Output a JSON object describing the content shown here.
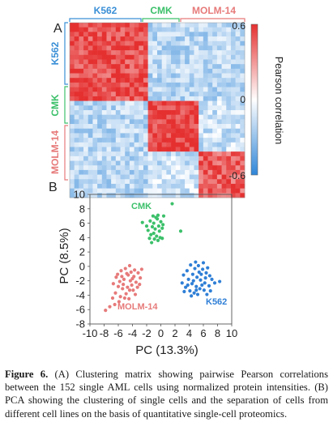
{
  "panel_a": {
    "label": "A",
    "top_groups": [
      "K562",
      "CMK",
      "MOLM-14"
    ],
    "left_groups": [
      "K562",
      "CMK",
      "MOLM-14"
    ],
    "colorbar_ticks": [
      "0.6",
      "0",
      "-0.6"
    ],
    "colorbar_label": "Pearson correlation",
    "colors": {
      "K562": "#3a8fd6",
      "CMK": "#3cc06a",
      "MOLM-14": "#e77a7a",
      "positive": "#e53030",
      "negative": "#2f86d8"
    }
  },
  "panel_b": {
    "label": "B",
    "xlabel": "PC (13.3%)",
    "ylabel": "PC (8.5%)",
    "xticks": [
      -10,
      -8,
      -6,
      -4,
      -2,
      0,
      2,
      4,
      6,
      8,
      10
    ],
    "yticks": [
      10,
      8,
      6,
      4,
      2,
      0,
      -2,
      -4,
      -6,
      -8
    ],
    "cluster_labels": [
      "CMK",
      "MOLM-14",
      "K562"
    ]
  },
  "chart_data": [
    {
      "type": "heatmap",
      "title": "",
      "rows": [
        "K562",
        "CMK",
        "MOLM-14"
      ],
      "columns": [
        "K562",
        "CMK",
        "MOLM-14"
      ],
      "values": [
        [
          0.5,
          -0.2,
          -0.2
        ],
        [
          -0.2,
          0.55,
          -0.15
        ],
        [
          -0.2,
          -0.15,
          0.45
        ]
      ],
      "zlim": [
        -0.6,
        0.6
      ],
      "zlabel": "Pearson correlation"
    },
    {
      "type": "scatter",
      "xlabel": "PC (13.3%)",
      "ylabel": "PC (8.5%)",
      "xlim": [
        -10,
        10
      ],
      "ylim": [
        -8,
        10
      ],
      "series": [
        {
          "name": "CMK",
          "color": "#3cc06a",
          "points": [
            [
              -1.5,
              6.3
            ],
            [
              -1.0,
              6.0
            ],
            [
              -0.5,
              6.6
            ],
            [
              0.0,
              6.2
            ],
            [
              -2.6,
              6.1
            ],
            [
              -1.2,
              5.5
            ],
            [
              -0.8,
              5.2
            ],
            [
              -0.3,
              5.6
            ],
            [
              0.3,
              5.8
            ],
            [
              -1.8,
              5.0
            ],
            [
              -1.0,
              4.6
            ],
            [
              -0.6,
              4.2
            ],
            [
              -0.2,
              4.9
            ],
            [
              0.2,
              5.3
            ],
            [
              -1.4,
              4.4
            ],
            [
              -0.9,
              3.8
            ],
            [
              -0.4,
              3.6
            ],
            [
              -1.6,
              3.9
            ],
            [
              -0.1,
              4.0
            ],
            [
              -1.1,
              7.0
            ],
            [
              -0.4,
              7.1
            ],
            [
              0.4,
              7.0
            ],
            [
              -2.0,
              5.6
            ],
            [
              0.2,
              3.9
            ],
            [
              1.6,
              8.7
            ],
            [
              2.8,
              4.9
            ],
            [
              -0.7,
              6.8
            ],
            [
              -1.3,
              3.3
            ]
          ]
        },
        {
          "name": "MOLM-14",
          "color": "#e77a7a",
          "points": [
            [
              -6.3,
              -1.5
            ],
            [
              -5.8,
              -2.1
            ],
            [
              -5.2,
              -1.8
            ],
            [
              -4.6,
              -1.2
            ],
            [
              -4.2,
              -0.8
            ],
            [
              -3.7,
              -0.5
            ],
            [
              -3.2,
              -0.9
            ],
            [
              -2.9,
              -1.6
            ],
            [
              -3.5,
              -2.2
            ],
            [
              -4.1,
              -2.6
            ],
            [
              -4.7,
              -2.9
            ],
            [
              -5.4,
              -3.1
            ],
            [
              -6.0,
              -2.8
            ],
            [
              -6.7,
              -2.4
            ],
            [
              -5.6,
              -0.6
            ],
            [
              -5.0,
              -0.3
            ],
            [
              -4.4,
              0.1
            ],
            [
              -3.9,
              -3.3
            ],
            [
              -4.9,
              -3.8
            ],
            [
              -5.7,
              -4.2
            ],
            [
              -6.4,
              -3.7
            ],
            [
              -3.3,
              -2.9
            ],
            [
              -4.0,
              -1.7
            ],
            [
              -5.3,
              -2.5
            ],
            [
              -6.1,
              -1.1
            ],
            [
              -2.7,
              -0.4
            ],
            [
              -3.6,
              -3.9
            ],
            [
              -4.5,
              -4.5
            ],
            [
              -5.9,
              -4.9
            ],
            [
              -6.8,
              -4.4
            ],
            [
              -4.3,
              -2.0
            ],
            [
              -3.0,
              -2.5
            ],
            [
              -5.5,
              -1.4
            ],
            [
              -4.8,
              -1.0
            ],
            [
              -6.5,
              -5.3
            ],
            [
              -7.8,
              -6.1
            ],
            [
              -7.2,
              -5.6
            ],
            [
              -3.8,
              -1.4
            ],
            [
              -5.1,
              -4.4
            ],
            [
              -4.4,
              -3.3
            ]
          ]
        },
        {
          "name": "K562",
          "color": "#2f7fd6",
          "points": [
            [
              4.2,
              0.2
            ],
            [
              4.8,
              -0.3
            ],
            [
              5.3,
              0.1
            ],
            [
              5.9,
              -0.4
            ],
            [
              6.4,
              -0.9
            ],
            [
              6.9,
              -1.3
            ],
            [
              4.5,
              -1.1
            ],
            [
              5.1,
              -1.5
            ],
            [
              5.6,
              -1.9
            ],
            [
              6.2,
              -2.3
            ],
            [
              6.8,
              -2.7
            ],
            [
              3.9,
              -1.8
            ],
            [
              4.4,
              -2.4
            ],
            [
              5.0,
              -2.8
            ],
            [
              5.5,
              -3.1
            ],
            [
              6.1,
              -3.3
            ],
            [
              3.5,
              -2.9
            ],
            [
              4.1,
              -3.4
            ],
            [
              4.7,
              -3.7
            ],
            [
              3.2,
              -1.2
            ],
            [
              3.7,
              -0.6
            ],
            [
              6.6,
              -0.2
            ],
            [
              7.2,
              -1.8
            ],
            [
              7.6,
              -2.3
            ],
            [
              5.8,
              -2.6
            ],
            [
              5.4,
              -0.8
            ],
            [
              4.9,
              0.6
            ],
            [
              6.0,
              0.5
            ],
            [
              3.3,
              -3.5
            ],
            [
              4.3,
              -4.1
            ],
            [
              5.2,
              -3.9
            ],
            [
              7.0,
              -3.4
            ],
            [
              6.5,
              -3.9
            ],
            [
              5.7,
              -1.1
            ],
            [
              4.6,
              -2.0
            ],
            [
              3.8,
              -2.6
            ],
            [
              8.3,
              -2.1
            ],
            [
              3.0,
              -2.3
            ],
            [
              6.3,
              -1.6
            ],
            [
              5.0,
              -3.3
            ]
          ]
        }
      ]
    }
  ],
  "caption": {
    "label": "Figure 6.",
    "text": " (A) Clustering matrix showing pairwise Pearson correlations between the 152 single AML cells using normalized protein intensities. (B) PCA showing the clustering of single cells and the separation of cells from different cell lines on the basis of quantitative single-cell proteomics."
  }
}
